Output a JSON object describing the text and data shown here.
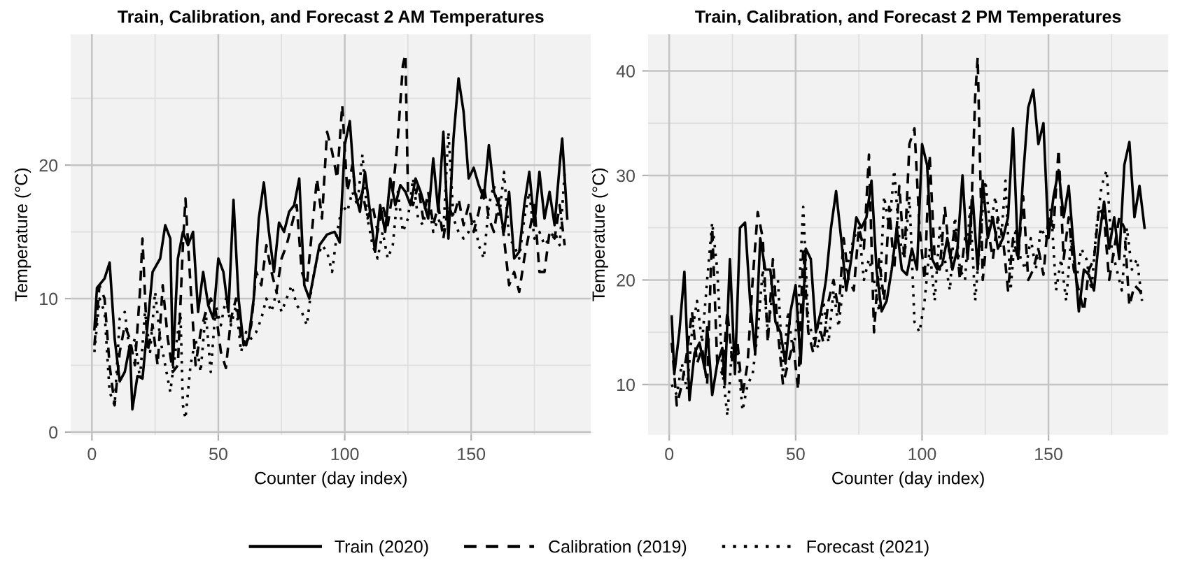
{
  "chart_data": [
    {
      "type": "line",
      "title": "Train, Calibration, and Forecast 2 AM Temperatures",
      "xlabel": "Counter (day index)",
      "ylabel": "Temperature (°C)",
      "xlim": [
        -8.35,
        197.35
      ],
      "ylim": [
        -0.2,
        29.8
      ],
      "xticks": [
        0,
        50,
        100,
        150
      ],
      "yticks": [
        0,
        10,
        20
      ],
      "grid": true,
      "legend": "bottom",
      "marker": "none",
      "series": [
        {
          "name": "Train (2020)",
          "color": "#000000",
          "line_style": "solid",
          "x": [
            1,
            2,
            5,
            7,
            9,
            11,
            13,
            15,
            16,
            18,
            20,
            22,
            24,
            27,
            29,
            31,
            32,
            34,
            36,
            38,
            40,
            42,
            44,
            46,
            48,
            50,
            52,
            54,
            56,
            58,
            60,
            62,
            64,
            66,
            68,
            70,
            72,
            74,
            76,
            78,
            80,
            82,
            84,
            86,
            88,
            90,
            93,
            96,
            98,
            100,
            102,
            104,
            106,
            108,
            110,
            112,
            114,
            116,
            118,
            120,
            122,
            124,
            126,
            128,
            130,
            133,
            135,
            137,
            139,
            141,
            143,
            145,
            147,
            149,
            151,
            153,
            155,
            157,
            159,
            161,
            163,
            165,
            167,
            169,
            171,
            173,
            175,
            177,
            179,
            181,
            183,
            185,
            186,
            188
          ],
          "values": [
            7.7,
            10.8,
            11.5,
            12.7,
            7,
            3.8,
            4.5,
            6.5,
            1.7,
            4.2,
            4,
            8,
            12,
            13,
            15.5,
            14.5,
            5,
            13,
            15,
            14,
            15,
            9,
            12,
            9.5,
            8.5,
            13,
            12,
            9,
            17.4,
            10,
            6.5,
            7,
            10,
            16,
            18.7,
            15,
            12,
            15.7,
            15,
            16.5,
            17,
            19,
            11,
            10,
            12,
            14,
            14.8,
            15,
            14.2,
            21.5,
            23.3,
            18,
            16.5,
            19.5,
            16.5,
            13.5,
            17,
            15,
            19,
            17,
            18.5,
            18,
            17,
            19,
            18,
            16,
            20.5,
            16.5,
            22.5,
            14.5,
            22,
            26.5,
            24,
            19,
            19.8,
            18.5,
            17.5,
            21.5,
            18,
            17,
            15,
            18,
            13,
            13.5,
            17,
            19.5,
            15.5,
            19.5,
            16,
            18,
            15.5,
            20,
            22,
            16
          ]
        },
        {
          "name": "Calibration (2019)",
          "color": "#000000",
          "line_style": "dashed",
          "x": [
            1,
            3,
            5,
            7,
            9,
            11,
            13,
            15,
            17,
            19,
            20,
            22,
            24,
            26,
            28,
            30,
            32,
            34,
            36,
            37,
            39,
            41,
            43,
            45,
            47,
            49,
            51,
            53,
            55,
            57,
            59,
            61,
            63,
            65,
            67,
            69,
            71,
            73,
            75,
            77,
            79,
            81,
            83,
            85,
            87,
            89,
            91,
            93,
            95,
            97,
            99,
            101,
            103,
            105,
            107,
            109,
            111,
            113,
            115,
            117,
            119,
            121,
            123,
            124,
            125,
            127,
            129,
            131,
            133,
            135,
            137,
            139,
            141,
            143,
            145,
            147,
            149,
            151,
            153,
            155,
            157,
            159,
            161,
            163,
            165,
            167,
            169,
            171,
            173,
            175,
            177,
            179,
            181,
            183,
            185,
            187
          ],
          "values": [
            6.5,
            11,
            10,
            5,
            2,
            6,
            8,
            7,
            5,
            10.5,
            14.5,
            6,
            8,
            5,
            11,
            7,
            4.5,
            5,
            14,
            17.5,
            11,
            5,
            7.5,
            9,
            10,
            9,
            6,
            4.8,
            8.5,
            10,
            7,
            6.5,
            8,
            12,
            11,
            14,
            12,
            10.5,
            13,
            14,
            15.5,
            17,
            12,
            11,
            15,
            19,
            16,
            22.5,
            21,
            19,
            24.5,
            18,
            20,
            17,
            18,
            16,
            17,
            15,
            17,
            15.5,
            18,
            22,
            27.5,
            28.3,
            18,
            17,
            18.5,
            16,
            18,
            15.5,
            17,
            14.5,
            17,
            16,
            17.5,
            15.5,
            17,
            15,
            16.5,
            18.5,
            16,
            15,
            17.5,
            14.5,
            11,
            12,
            10.5,
            13,
            15,
            17,
            12,
            12,
            15,
            14.5,
            17,
            14
          ]
        },
        {
          "name": "Forecast (2021)",
          "color": "#000000",
          "line_style": "dotted",
          "x": [
            1,
            3,
            5,
            7,
            9,
            11,
            13,
            15,
            17,
            19,
            21,
            23,
            25,
            27,
            29,
            31,
            33,
            35,
            36,
            37,
            39,
            41,
            43,
            45,
            47,
            49,
            51,
            53,
            55,
            57,
            59,
            61,
            63,
            65,
            67,
            69,
            71,
            73,
            75,
            77,
            79,
            81,
            83,
            85,
            87,
            89,
            91,
            93,
            95,
            97,
            99,
            101,
            103,
            105,
            107,
            109,
            111,
            113,
            115,
            117,
            119,
            121,
            123,
            125,
            127,
            129,
            131,
            133,
            135,
            137,
            139,
            141,
            143,
            145,
            147,
            149,
            151,
            153,
            155,
            157,
            159,
            161,
            163,
            165,
            167,
            169,
            171,
            173,
            175,
            177,
            179,
            181,
            183,
            185,
            187
          ],
          "values": [
            6,
            10,
            9,
            3,
            2,
            8.5,
            9,
            6,
            7,
            4,
            9,
            6,
            10.5,
            7,
            5,
            3,
            6,
            9,
            2,
            1,
            5,
            7,
            4.5,
            9,
            4.5,
            9.5,
            8,
            10,
            8,
            9.5,
            6,
            7.5,
            7,
            7.5,
            8.5,
            10,
            9,
            10.5,
            9,
            10,
            11,
            9.5,
            9,
            8,
            11,
            13,
            14,
            13.5,
            12,
            15,
            17,
            16.5,
            18,
            17,
            20.8,
            16,
            14,
            13,
            15,
            13,
            14,
            18,
            15,
            16,
            19,
            16,
            15.5,
            17.5,
            15,
            16,
            15,
            22.5,
            16,
            15,
            14.5,
            15,
            16,
            14,
            13,
            17,
            18.5,
            16,
            19.5,
            14.5,
            14,
            13,
            16,
            18,
            14.5,
            15,
            14,
            14.5,
            15,
            14,
            19.5
          ]
        }
      ]
    },
    {
      "type": "line",
      "title": "Train, Calibration, and Forecast 2 PM Temperatures",
      "xlabel": "Counter (day index)",
      "ylabel": "Temperature (°C)",
      "xlim": [
        -8.35,
        197.35
      ],
      "ylim": [
        5.2,
        43.5
      ],
      "xticks": [
        0,
        50,
        100,
        150
      ],
      "yticks": [
        10,
        20,
        30,
        40
      ],
      "grid": true,
      "legend": "bottom",
      "marker": "none",
      "series": [
        {
          "color": "#000000",
          "line_style": "solid",
          "x": [
            1,
            2,
            4,
            6,
            8,
            10,
            12,
            14,
            15,
            17,
            19,
            21,
            22,
            24,
            26,
            28,
            30,
            32,
            34,
            36,
            38,
            40,
            42,
            44,
            46,
            48,
            50,
            52,
            54,
            56,
            58,
            60,
            62,
            64,
            66,
            68,
            70,
            72,
            74,
            76,
            78,
            80,
            82,
            84,
            86,
            88,
            90,
            92,
            94,
            96,
            98,
            100,
            102,
            104,
            106,
            108,
            110,
            112,
            114,
            116,
            118,
            120,
            122,
            124,
            126,
            128,
            130,
            132,
            134,
            136,
            138,
            140,
            142,
            144,
            146,
            148,
            150,
            152,
            154,
            156,
            158,
            160,
            162,
            164,
            166,
            168,
            170,
            172,
            174,
            176,
            178,
            180,
            182,
            184,
            186,
            188
          ],
          "values": [
            16.5,
            11,
            15,
            20.8,
            8.5,
            13,
            14,
            11.5,
            15.5,
            9,
            12,
            13.5,
            10,
            22,
            11,
            25,
            25.5,
            18,
            13,
            24,
            21,
            21,
            16,
            15,
            12,
            17,
            19.5,
            12,
            23,
            22,
            15,
            17,
            20,
            25,
            28.5,
            24,
            19,
            22,
            26,
            25,
            26,
            29.5,
            21,
            17,
            18,
            21,
            25,
            21,
            20.5,
            23,
            21,
            33,
            31,
            22,
            21,
            21.5,
            24,
            21,
            23,
            30,
            22,
            28,
            21,
            29.5,
            24,
            26,
            23,
            24,
            26,
            34.5,
            22,
            30,
            36.5,
            38.2,
            33,
            35,
            24,
            28,
            30.5,
            26,
            29,
            23,
            17,
            21,
            20.5,
            19,
            24,
            27.5,
            23,
            26,
            22,
            31,
            33.2,
            26,
            29,
            25
          ]
        },
        {
          "color": "#000000",
          "line_style": "dashed",
          "x": [
            1,
            3,
            5,
            7,
            9,
            11,
            13,
            15,
            17,
            19,
            21,
            23,
            25,
            27,
            29,
            31,
            33,
            35,
            37,
            39,
            41,
            43,
            45,
            47,
            49,
            51,
            53,
            55,
            57,
            59,
            61,
            63,
            65,
            67,
            69,
            71,
            73,
            75,
            77,
            79,
            81,
            83,
            85,
            87,
            89,
            91,
            93,
            95,
            97,
            99,
            101,
            103,
            105,
            107,
            109,
            111,
            113,
            115,
            117,
            119,
            121,
            122,
            124,
            126,
            128,
            130,
            132,
            134,
            136,
            138,
            140,
            142,
            144,
            146,
            148,
            150,
            152,
            154,
            156,
            158,
            160,
            162,
            164,
            166,
            168,
            170,
            172,
            174,
            176,
            178,
            180,
            182,
            184,
            186,
            188
          ],
          "values": [
            14,
            8,
            10,
            13,
            17,
            12,
            13.5,
            10,
            25,
            12,
            11,
            17,
            12,
            14,
            9,
            12,
            20,
            26.5,
            24,
            14,
            22,
            15,
            10,
            12,
            14,
            9.5,
            23,
            15,
            13,
            16,
            14,
            18,
            20,
            17,
            24,
            20,
            19,
            25,
            23,
            32,
            15,
            22,
            18,
            27,
            21,
            29,
            22,
            33,
            34.5,
            25,
            20,
            32,
            22,
            21,
            27,
            22,
            25,
            20,
            24,
            23,
            37.5,
            41.3,
            20,
            25,
            22,
            26,
            24,
            19,
            24,
            22,
            28,
            20,
            21,
            23,
            20.5,
            26,
            25,
            32.5,
            22,
            26,
            21,
            19,
            17,
            21,
            22,
            27,
            26,
            20,
            23,
            26,
            25,
            17.5,
            19.5,
            19,
            18
          ]
        },
        {
          "color": "#000000",
          "line_style": "dotted",
          "x": [
            1,
            3,
            5,
            7,
            9,
            11,
            13,
            15,
            17,
            19,
            21,
            23,
            25,
            27,
            29,
            31,
            33,
            35,
            37,
            39,
            41,
            43,
            45,
            47,
            49,
            51,
            53,
            55,
            57,
            59,
            61,
            63,
            65,
            67,
            69,
            71,
            73,
            75,
            77,
            79,
            81,
            83,
            85,
            87,
            89,
            91,
            93,
            95,
            97,
            99,
            101,
            103,
            105,
            107,
            109,
            111,
            113,
            115,
            117,
            119,
            121,
            123,
            125,
            127,
            129,
            131,
            133,
            135,
            137,
            139,
            141,
            143,
            145,
            147,
            149,
            151,
            153,
            155,
            157,
            159,
            161,
            163,
            165,
            167,
            169,
            171,
            173,
            175,
            177,
            179,
            181,
            183,
            185,
            187
          ],
          "values": [
            10,
            9,
            12,
            9.5,
            15,
            18,
            14,
            20,
            25.5,
            21,
            11.5,
            7,
            14,
            13,
            7.5,
            10,
            11,
            15,
            21,
            15,
            19,
            20,
            11,
            17,
            13,
            17,
            27,
            16,
            14.5,
            13.5,
            18,
            14,
            19,
            15.5,
            20,
            22,
            24,
            25,
            20,
            22,
            20,
            17,
            28,
            25,
            30.5,
            24,
            22,
            28,
            16,
            15,
            18,
            23,
            18,
            25,
            22,
            19,
            26,
            21,
            20,
            27,
            18,
            24,
            29.5,
            25,
            28,
            23,
            29.5,
            19,
            25,
            22,
            21,
            24,
            21,
            25,
            24,
            27,
            19,
            22,
            18,
            24,
            20,
            23,
            22,
            19,
            25,
            29,
            30.5,
            23,
            21,
            19,
            25,
            21,
            22,
            18
          ]
        }
      ]
    }
  ]
}
